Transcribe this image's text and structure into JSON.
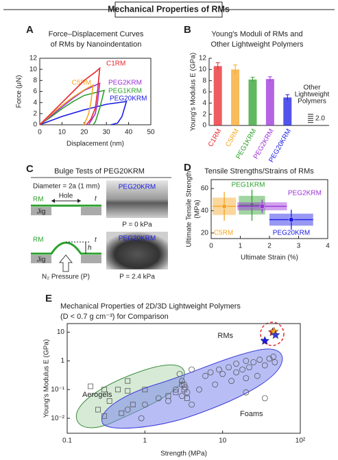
{
  "header": {
    "title": "Mechanical Properties of RMs"
  },
  "chart_data": [
    {
      "panel": "A",
      "type": "line",
      "title": [
        "Force–Displacement Curves",
        "of RMs by Nanoindentation"
      ],
      "x_label": "Displacement (nm)",
      "y_label": "Force (μN)",
      "xlim": [
        0,
        50
      ],
      "xticks": [
        0,
        10,
        20,
        30,
        40,
        50
      ],
      "ylim": [
        0,
        12
      ],
      "yticks": [
        0,
        2,
        4,
        6,
        8,
        10,
        12
      ],
      "series": [
        {
          "name": "C1RM",
          "color": "#e8262a",
          "x": [
            0,
            5,
            10,
            15,
            20,
            25,
            27,
            26,
            25,
            23,
            21
          ],
          "values": [
            0,
            2,
            4,
            6,
            8,
            9.5,
            10.2,
            6,
            3,
            1,
            0
          ]
        },
        {
          "name": "C5RM",
          "color": "#f5a623",
          "x": [
            0,
            5,
            10,
            15,
            20,
            24,
            23,
            22,
            20
          ],
          "values": [
            0,
            1.8,
            3.5,
            5,
            6.3,
            7.2,
            4,
            2,
            0
          ]
        },
        {
          "name": "PEG2KRM",
          "color": "#9b30d9",
          "x": [
            0,
            5,
            10,
            15,
            20,
            27,
            26,
            25,
            22
          ],
          "values": [
            0,
            1.6,
            3.2,
            4.8,
            6.2,
            7.5,
            4,
            2,
            0
          ]
        },
        {
          "name": "PEG1KRM",
          "color": "#2ca02c",
          "x": [
            0,
            5,
            10,
            15,
            20,
            29,
            27,
            25,
            24
          ],
          "values": [
            0,
            1.4,
            2.9,
            4.2,
            5.3,
            6.2,
            3,
            0.5,
            0
          ]
        },
        {
          "name": "PEG20KRM",
          "color": "#1a1ae6",
          "x": [
            0,
            10,
            20,
            30,
            39,
            37,
            35,
            32
          ],
          "values": [
            0,
            1.5,
            2.7,
            3.7,
            4.2,
            1.5,
            0.3,
            0
          ]
        }
      ]
    },
    {
      "panel": "B",
      "type": "bar",
      "title": [
        "Young's Moduli of RMs and",
        "Other Lightweight Polymers"
      ],
      "y_label": "Young's Modulus E (GPa)",
      "ylim": [
        0,
        12
      ],
      "yticks": [
        0,
        2,
        4,
        6,
        8,
        10,
        12
      ],
      "categories": [
        "C1RM",
        "C5RM",
        "PEG1KRM",
        "PEG2KRM",
        "PEG20KRM"
      ],
      "values": [
        10.6,
        10.0,
        8.2,
        8.3,
        5.0
      ],
      "errors": [
        0.6,
        0.8,
        0.4,
        0.4,
        0.5
      ],
      "colors": [
        "#e8262a",
        "#f5a623",
        "#2ca02c",
        "#9b30d9",
        "#1a1ae6"
      ],
      "other_label": [
        "Other",
        "Lightweight",
        "Polymers"
      ],
      "other_value": {
        "value": 2.0,
        "label": "2.0"
      }
    },
    {
      "panel": "D",
      "type": "scatter",
      "title": "Tensile Strengths/Strains of RMs",
      "x_label": "Ultimate Strain (%)",
      "y_label": [
        "Ultimate Tensile Strength",
        "(MPa)"
      ],
      "xlim": [
        0,
        4
      ],
      "xticks": [
        0,
        1,
        2,
        3,
        4
      ],
      "ylim": [
        15,
        68
      ],
      "yticks": [
        20,
        40,
        60
      ],
      "series": [
        {
          "name": "C5RM",
          "color": "#f5a623",
          "x": [
            0.45
          ],
          "values": [
            44
          ],
          "xerr": [
            0.4
          ],
          "yerr": [
            13
          ]
        },
        {
          "name": "PEG1KRM",
          "color": "#2ca02c",
          "x": [
            1.4
          ],
          "values": [
            45
          ],
          "xerr": [
            0.45
          ],
          "yerr": [
            14
          ]
        },
        {
          "name": "PEG2KRM",
          "color": "#9b30d9",
          "x": [
            1.75
          ],
          "values": [
            44
          ],
          "xerr": [
            0.85
          ],
          "yerr": [
            6
          ]
        },
        {
          "name": "PEG20KRM",
          "color": "#1a1ae6",
          "x": [
            2.75
          ],
          "values": [
            32
          ],
          "xerr": [
            0.75
          ],
          "yerr": [
            9
          ]
        }
      ]
    },
    {
      "panel": "E",
      "type": "scatter",
      "title": [
        "Mechanical Properties of 2D/3D Lightweight Polymers",
        "(D < 0.7 g cm⁻³) for Comparison"
      ],
      "x_label": "Strength (MPa)",
      "y_label": "Young's Modulus E (GPa)",
      "log_x": true,
      "log_y": true,
      "xlim": [
        0.1,
        100
      ],
      "xticks": [
        0.1,
        1,
        10,
        {
          "value": 100,
          "label": "10²"
        }
      ],
      "ylim": [
        0.003,
        20
      ],
      "yticks": [
        {
          "value": 0.01,
          "label": "10⁻²"
        },
        {
          "value": 0.1,
          "label": "10⁻¹"
        },
        1,
        10
      ],
      "series": [
        {
          "name": "Aerogels",
          "marker": "square",
          "color": "#555555",
          "x": [
            0.2,
            0.25,
            0.3,
            0.35,
            0.45,
            0.5,
            0.6,
            0.6,
            0.7,
            1,
            2,
            2.5,
            3,
            3.2,
            3.5,
            0.3
          ],
          "values": [
            0.13,
            0.02,
            0.012,
            0.04,
            0.1,
            0.015,
            0.09,
            0.2,
            0.03,
            0.1,
            0.06,
            0.08,
            0.15,
            0.1,
            0.05,
            0.1
          ]
        },
        {
          "name": "Foams",
          "marker": "circle",
          "color": "#555555",
          "x": [
            0.6,
            0.9,
            1,
            1.5,
            2,
            2.5,
            3,
            3,
            3.3,
            3.5,
            4,
            5,
            6,
            7,
            8,
            9,
            10,
            12,
            13,
            15,
            15,
            18,
            20,
            20,
            22,
            25,
            28,
            30,
            35,
            40,
            45,
            47,
            35,
            20,
            3.2,
            2.8,
            4
          ],
          "values": [
            0.02,
            0.01,
            0.03,
            0.05,
            0.04,
            0.1,
            0.06,
            0.2,
            0.12,
            0.08,
            0.03,
            0.1,
            0.3,
            0.4,
            0.15,
            0.5,
            0.35,
            0.6,
            0.2,
            0.8,
            0.4,
            0.5,
            1,
            0.25,
            0.6,
            0.9,
            0.3,
            1.1,
            0.7,
            1.2,
            1.4,
            0.9,
            0.05,
            0.08,
            0.15,
            0.35,
            0.5
          ]
        },
        {
          "name": "RMs",
          "marker": "star",
          "colors": [
            "#e8262a",
            "#f5a623",
            "#1a1ae6",
            "#3b3bd9"
          ],
          "x": [
            44,
            46,
            35,
            48
          ],
          "values": [
            10,
            10.5,
            5,
            8
          ]
        }
      ]
    }
  ],
  "bulge_test": {
    "panel": "C",
    "title": "Bulge Tests of PEG20KRM",
    "diameter": "Diameter = 2a (1 mm)",
    "before": {
      "rm": "RM",
      "hole": "Hole",
      "t": "t",
      "jig": "Jig",
      "photo_label": "PEG20KRM",
      "pressure": "P = 0 kPa"
    },
    "after": {
      "rm": "RM",
      "h": "h",
      "t": "t",
      "jig": "Jig",
      "gas": "N₂ Pressure (P)",
      "photo_label": "PEG20KRM",
      "pressure": "P = 2.4 kPa"
    }
  }
}
